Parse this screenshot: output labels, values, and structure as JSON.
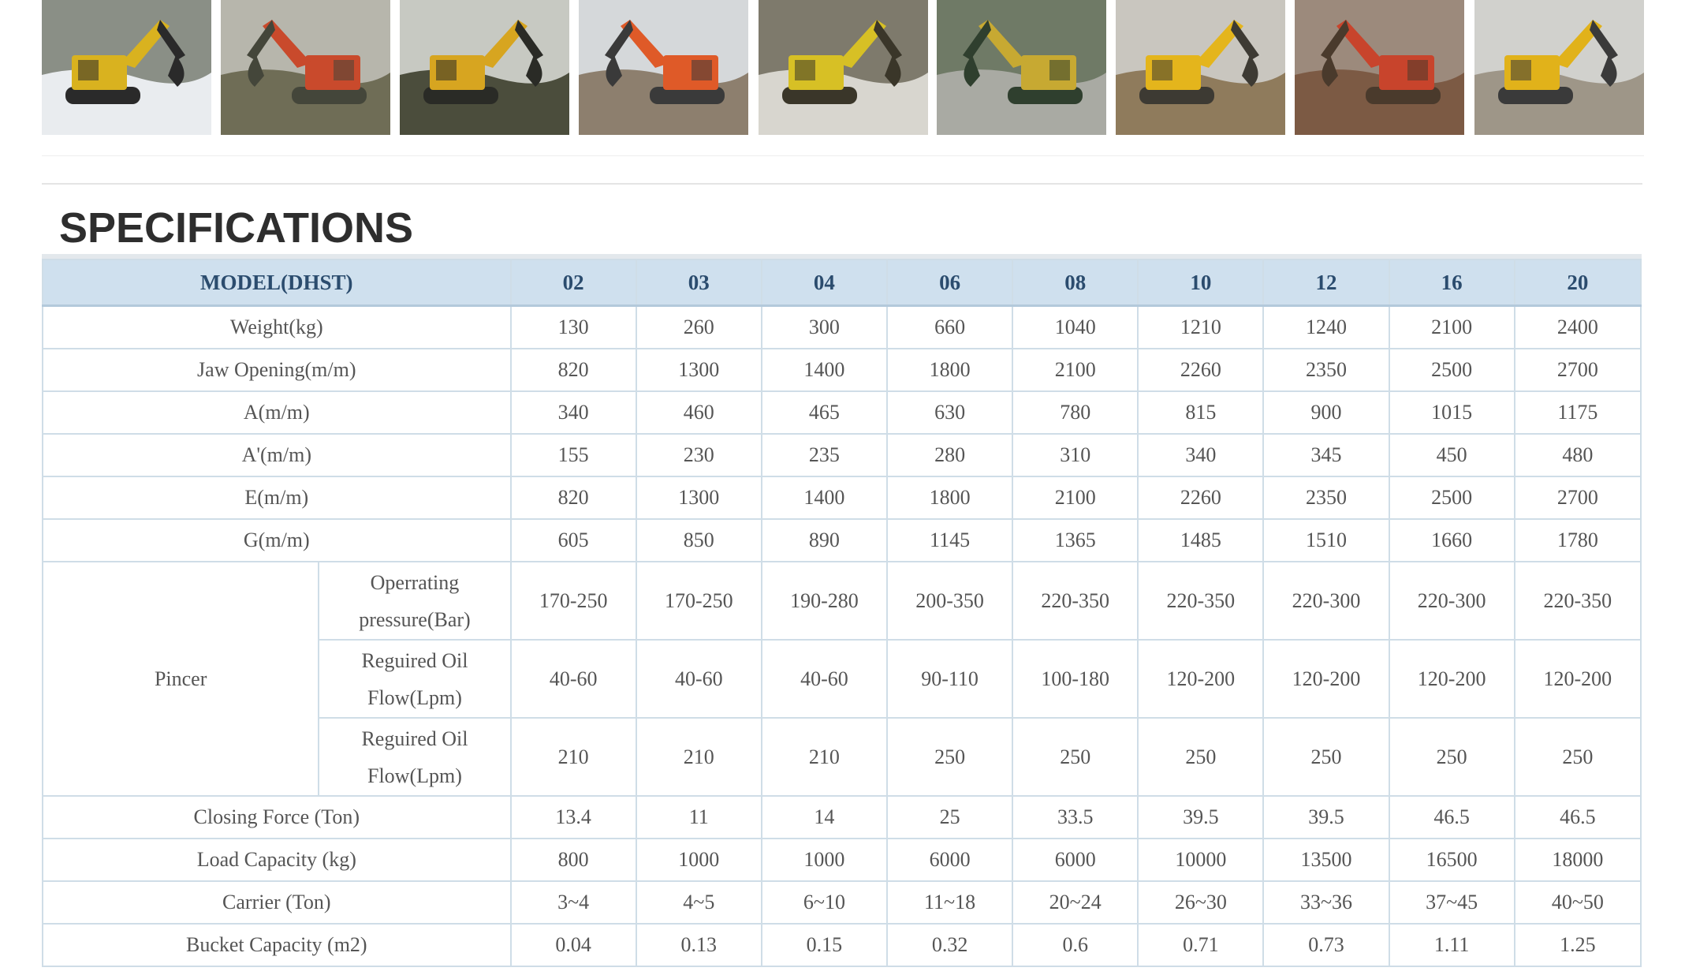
{
  "gallery": {
    "images": [
      {
        "icon": "excavator-photo-icon",
        "palette": {
          "sky": "#8a8f86",
          "ground": "#e9ecef",
          "machine": "#d9b21f",
          "accent": "#2a2a2a"
        }
      },
      {
        "icon": "excavator-photo-icon",
        "palette": {
          "sky": "#b7b6ac",
          "ground": "#6f6d56",
          "machine": "#c94a2c",
          "accent": "#44463a"
        }
      },
      {
        "icon": "excavator-photo-icon",
        "palette": {
          "sky": "#c7c9c2",
          "ground": "#4b4d3c",
          "machine": "#d7a520",
          "accent": "#2a2b26"
        }
      },
      {
        "icon": "excavator-photo-icon",
        "palette": {
          "sky": "#d5d8da",
          "ground": "#8d7f6e",
          "machine": "#df5a28",
          "accent": "#3a3a3a"
        }
      },
      {
        "icon": "excavator-photo-icon",
        "palette": {
          "sky": "#7e7a6c",
          "ground": "#d8d6cf",
          "machine": "#d7c025",
          "accent": "#3a3629"
        }
      },
      {
        "icon": "excavator-photo-icon",
        "palette": {
          "sky": "#6f7a66",
          "ground": "#a9aaa3",
          "machine": "#c7a932",
          "accent": "#2f3f2e"
        }
      },
      {
        "icon": "excavator-photo-icon",
        "palette": {
          "sky": "#c9c6bf",
          "ground": "#8f7b5c",
          "machine": "#e4b51c",
          "accent": "#3d3a33"
        }
      },
      {
        "icon": "excavator-photo-icon",
        "palette": {
          "sky": "#9c8a7c",
          "ground": "#7c5a44",
          "machine": "#c8442c",
          "accent": "#4a3a2c"
        }
      },
      {
        "icon": "excavator-photo-icon",
        "palette": {
          "sky": "#d1d1cd",
          "ground": "#9e9688",
          "machine": "#e1b21a",
          "accent": "#3a3a3a"
        }
      }
    ]
  },
  "specs": {
    "title": "SPECIFICATIONS",
    "model_header": "MODEL(DHST)",
    "models": [
      "02",
      "03",
      "04",
      "06",
      "08",
      "10",
      "12",
      "16",
      "20"
    ],
    "rows_top": [
      {
        "label": "Weight(kg)",
        "values": [
          "130",
          "260",
          "300",
          "660",
          "1040",
          "1210",
          "1240",
          "2100",
          "2400"
        ]
      },
      {
        "label": "Jaw Opening(m/m)",
        "values": [
          "820",
          "1300",
          "1400",
          "1800",
          "2100",
          "2260",
          "2350",
          "2500",
          "2700"
        ]
      },
      {
        "label": "A(m/m)",
        "values": [
          "340",
          "460",
          "465",
          "630",
          "780",
          "815",
          "900",
          "1015",
          "1175"
        ]
      },
      {
        "label": "A'(m/m)",
        "values": [
          "155",
          "230",
          "235",
          "280",
          "310",
          "340",
          "345",
          "450",
          "480"
        ]
      },
      {
        "label": "E(m/m)",
        "values": [
          "820",
          "1300",
          "1400",
          "1800",
          "2100",
          "2260",
          "2350",
          "2500",
          "2700"
        ]
      },
      {
        "label": "G(m/m)",
        "values": [
          "605",
          "850",
          "890",
          "1145",
          "1365",
          "1485",
          "1510",
          "1660",
          "1780"
        ]
      }
    ],
    "pincer": {
      "label": "Pincer",
      "rows": [
        {
          "label_line1": "Operrating",
          "label_line2": "pressure(Bar)",
          "values": [
            "170-250",
            "170-250",
            "190-280",
            "200-350",
            "220-350",
            "220-350",
            "220-300",
            "220-300",
            "220-350"
          ]
        },
        {
          "label_line1": "Reguired Oil",
          "label_line2": "Flow(Lpm)",
          "values": [
            "40-60",
            "40-60",
            "40-60",
            "90-110",
            "100-180",
            "120-200",
            "120-200",
            "120-200",
            "120-200"
          ]
        },
        {
          "label_line1": "Reguired Oil",
          "label_line2": "Flow(Lpm)",
          "values": [
            "210",
            "210",
            "210",
            "250",
            "250",
            "250",
            "250",
            "250",
            "250"
          ]
        }
      ]
    },
    "rows_bottom": [
      {
        "label": "Closing Force (Ton)",
        "values": [
          "13.4",
          "11",
          "14",
          "25",
          "33.5",
          "39.5",
          "39.5",
          "46.5",
          "46.5"
        ]
      },
      {
        "label": "Load Capacity (kg)",
        "values": [
          "800",
          "1000",
          "1000",
          "6000",
          "6000",
          "10000",
          "13500",
          "16500",
          "18000"
        ]
      },
      {
        "label": "Carrier (Ton)",
        "values": [
          "3~4",
          "4~5",
          "6~10",
          "11~18",
          "20~24",
          "26~30",
          "33~36",
          "37~45",
          "40~50"
        ]
      },
      {
        "label": "Bucket Capacity (m2)",
        "values": [
          "0.04",
          "0.13",
          "0.15",
          "0.32",
          "0.6",
          "0.71",
          "0.73",
          "1.11",
          "1.25"
        ]
      }
    ]
  }
}
